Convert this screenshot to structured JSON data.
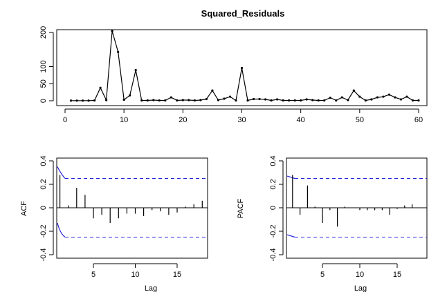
{
  "chart_data": [
    {
      "type": "line",
      "title": "Squared_Residuals",
      "xlim": [
        0,
        60
      ],
      "ylim": [
        0,
        200
      ],
      "xticks": [
        0,
        10,
        20,
        30,
        40,
        50,
        60
      ],
      "yticks": [
        0,
        50,
        100,
        200
      ],
      "x": [
        1,
        2,
        3,
        4,
        5,
        6,
        7,
        8,
        9,
        10,
        11,
        12,
        13,
        14,
        15,
        16,
        17,
        18,
        19,
        20,
        21,
        22,
        23,
        24,
        25,
        26,
        27,
        28,
        29,
        30,
        31,
        32,
        33,
        34,
        35,
        36,
        37,
        38,
        39,
        40,
        41,
        42,
        43,
        44,
        45,
        46,
        47,
        48,
        49,
        50,
        51,
        52,
        53,
        54,
        55,
        56,
        57,
        58,
        59,
        60
      ],
      "values": [
        0.5,
        0.5,
        0.5,
        0.5,
        1,
        38,
        2,
        204,
        143,
        3,
        16,
        90,
        1,
        1,
        2,
        1,
        1,
        10,
        1,
        2,
        2,
        1,
        2,
        5,
        30,
        2,
        6,
        12,
        1,
        96,
        1,
        5,
        5,
        4,
        1,
        4,
        1,
        1,
        1,
        1,
        4,
        2,
        1,
        1,
        9,
        1,
        10,
        2,
        30,
        12,
        1,
        4,
        10,
        12,
        18,
        10,
        4,
        12,
        1,
        1
      ]
    },
    {
      "type": "bar",
      "ylabel": "ACF",
      "xlabel": "Lag",
      "xlim": [
        0.3,
        18.5
      ],
      "ylim": [
        -0.4,
        0.4
      ],
      "xticks": [
        5,
        10,
        15
      ],
      "yticks": [
        -0.4,
        -0.2,
        0.0,
        0.2,
        0.4
      ],
      "confidence_bound": 0.25,
      "x": [
        1,
        2,
        3,
        4,
        5,
        6,
        7,
        8,
        9,
        10,
        11,
        12,
        13,
        14,
        15,
        16,
        17,
        18
      ],
      "values": [
        0.28,
        0.02,
        0.17,
        0.11,
        -0.09,
        -0.06,
        -0.13,
        -0.09,
        -0.05,
        -0.05,
        -0.07,
        -0.02,
        -0.03,
        -0.06,
        -0.04,
        0.01,
        0.03,
        0.06
      ]
    },
    {
      "type": "bar",
      "ylabel": "PACF",
      "xlabel": "Lag",
      "xlim": [
        0.3,
        17.5
      ],
      "ylim": [
        -0.4,
        0.4
      ],
      "xticks": [
        5,
        10,
        15
      ],
      "yticks": [
        -0.4,
        -0.2,
        0.0,
        0.2,
        0.4
      ],
      "confidence_bound": 0.25,
      "x": [
        1,
        2,
        3,
        4,
        5,
        6,
        7,
        8,
        9,
        10,
        11,
        12,
        13,
        14,
        15,
        16,
        17
      ],
      "values": [
        0.28,
        -0.06,
        0.19,
        0.01,
        -0.13,
        -0.02,
        -0.16,
        0.01,
        0.0,
        -0.02,
        -0.02,
        -0.02,
        -0.02,
        -0.06,
        -0.01,
        0.02,
        0.03
      ]
    }
  ]
}
